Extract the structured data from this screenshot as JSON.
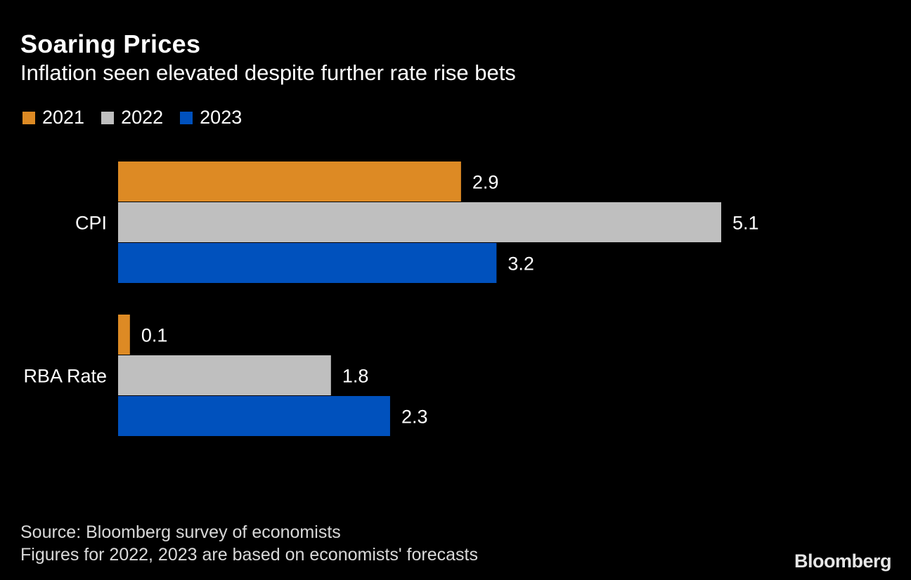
{
  "chart_data": {
    "type": "bar",
    "orientation": "horizontal",
    "title": "Soaring Prices",
    "subtitle": "Inflation seen elevated despite further rate rise bets",
    "categories": [
      "CPI",
      "RBA Rate"
    ],
    "series": [
      {
        "name": "2021",
        "color": "#dd8a24",
        "values": [
          2.9,
          0.1
        ]
      },
      {
        "name": "2022",
        "color": "#bfbfbf",
        "values": [
          5.1,
          1.8
        ]
      },
      {
        "name": "2023",
        "color": "#0051bd",
        "values": [
          3.2,
          2.3
        ]
      }
    ],
    "data_labels": [
      [
        "2.9",
        "0.1"
      ],
      [
        "5.1",
        "1.8"
      ],
      [
        "3.2",
        "2.3"
      ]
    ],
    "xlim": [
      0,
      5.1
    ],
    "grid": false,
    "legend_position": "top-left"
  },
  "footer": {
    "source": "Source: Bloomberg survey of economists",
    "note": "Figures for 2022, 2023 are based on economists' forecasts"
  },
  "brand": "Bloomberg"
}
